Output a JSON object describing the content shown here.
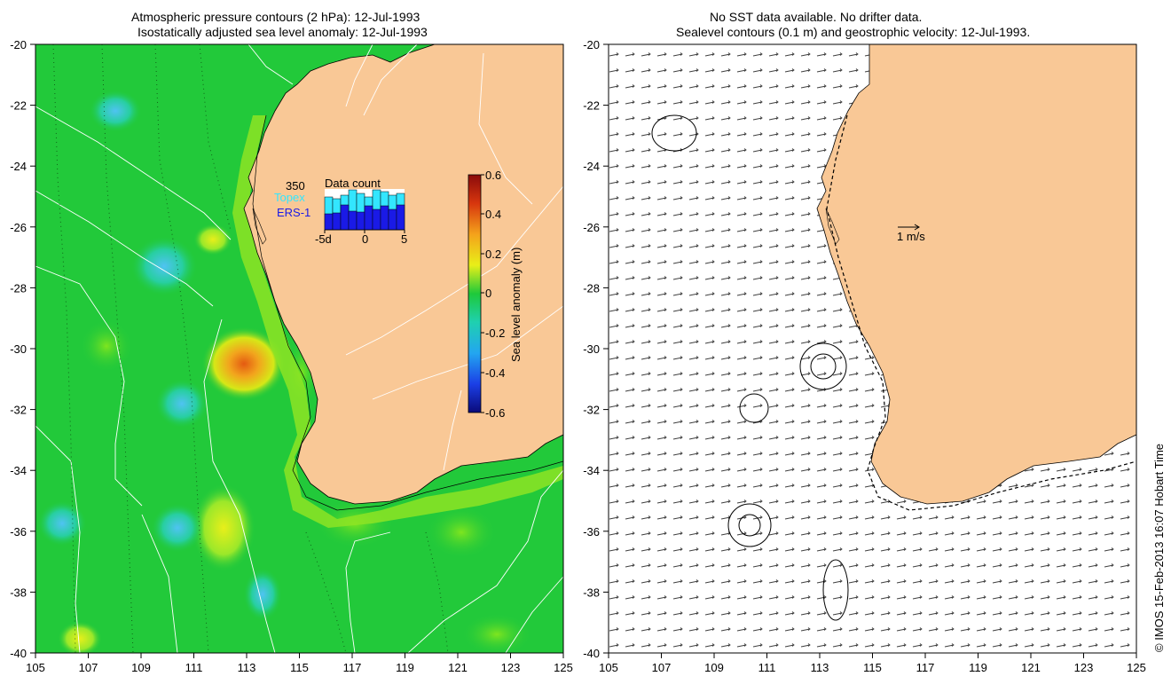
{
  "left_panel": {
    "title_line1": "Atmospheric pressure contours (2 hPa): 12-Jul-1993",
    "title_line2": "Isostatically adjusted sea level anomaly: 12-Jul-1993",
    "x_ticks": [
      "105",
      "107",
      "109",
      "111",
      "113",
      "115",
      "117",
      "119",
      "121",
      "123",
      "125"
    ],
    "y_ticks": [
      "-20",
      "-22",
      "-24",
      "-26",
      "-28",
      "-30",
      "-32",
      "-34",
      "-36",
      "-38",
      "-40"
    ],
    "inset": {
      "max_label": "350",
      "topex_label": "Topex",
      "ers_label": "ERS-1",
      "title": "Data count",
      "x_labels": [
        "-5d",
        "0",
        "5"
      ],
      "colors": {
        "topex": "#33e6ff",
        "ers": "#1a1ae6"
      }
    },
    "colorbar": {
      "label": "Sea level anomaly (m)",
      "ticks": [
        "0.6",
        "0.4",
        "0.2",
        "0",
        "-0.2",
        "-0.4",
        "-0.6"
      ]
    }
  },
  "right_panel": {
    "title_line1": "No SST data available.  No drifter data.",
    "title_line2": "Sealevel contours (0.1 m) and geostrophic velocity: 12-Jul-1993.",
    "x_ticks": [
      "105",
      "107",
      "109",
      "111",
      "113",
      "115",
      "117",
      "119",
      "121",
      "123",
      "125"
    ],
    "y_ticks": [
      "-20",
      "-22",
      "-24",
      "-26",
      "-28",
      "-30",
      "-32",
      "-34",
      "-36",
      "-38",
      "-40"
    ],
    "scale_label": "1 m/s"
  },
  "credit": "© IMOS 15-Feb-2013 16:07 Hobart Time",
  "colors": {
    "land": "#f9c896",
    "ocean": "#21c93a",
    "accent": "#e05a10"
  }
}
